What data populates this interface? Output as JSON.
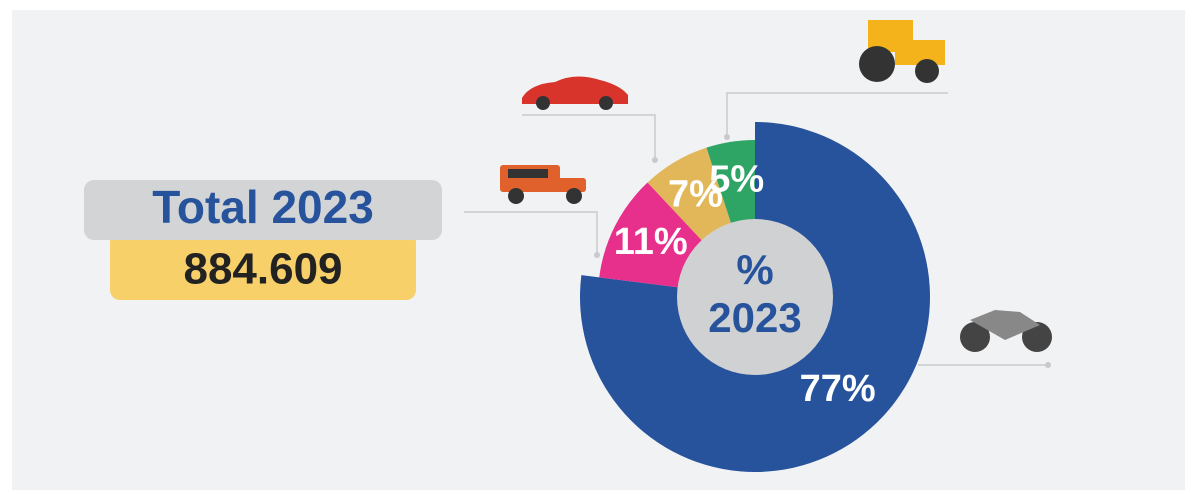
{
  "chart_data": {
    "type": "pie",
    "categories": [
      null,
      null,
      null,
      null
    ],
    "values": [
      77,
      11,
      7,
      5
    ],
    "value_labels": [
      "77%",
      "11%",
      "7%",
      "5%"
    ],
    "colors": [
      "#26539c",
      "#e72f8c",
      "#e2b75a",
      "#2ea565"
    ],
    "center_label": [
      "%",
      "2023"
    ],
    "total_label": "Total 2023",
    "total_value": "884.609"
  }
}
